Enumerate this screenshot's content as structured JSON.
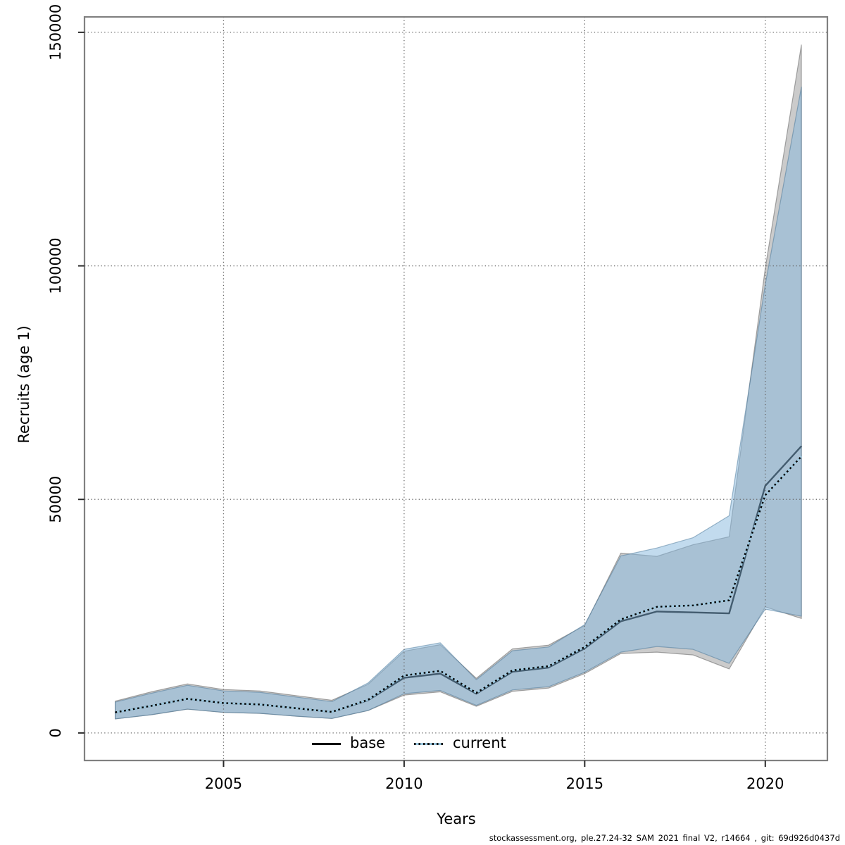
{
  "figure": {
    "background": "#ffffff"
  },
  "footer": {
    "text": "stockassessment.org, ple.27.24-32 SAM 2021 final V2, r14664 , git: 69d926d0437d"
  },
  "legend": {
    "position": "bottom-center-inside",
    "items": [
      {
        "label": "base",
        "line_style": "solid",
        "line_color": "#000000"
      },
      {
        "label": "current",
        "line_style": "dotted",
        "line_color": "#9ecae1"
      }
    ]
  },
  "chart_data": {
    "type": "line",
    "title": "",
    "xlabel": "Years",
    "ylabel": "Recruits (age 1)",
    "grid": "dotted",
    "legend_position": "bottom-center-inside",
    "xlim": [
      2001.15,
      2021.72
    ],
    "ylim": [
      -5900,
      153300
    ],
    "xticks": [
      2005,
      2010,
      2015,
      2020
    ],
    "xtick_labels": [
      "2005",
      "2010",
      "2015",
      "2020"
    ],
    "yticks": [
      0,
      50000,
      100000,
      150000
    ],
    "ytick_labels": [
      "0",
      "50000",
      "100000",
      "150000"
    ],
    "x": [
      2002,
      2003,
      2004,
      2005,
      2006,
      2007,
      2008,
      2009,
      2010,
      2011,
      2012,
      2013,
      2014,
      2015,
      2016,
      2017,
      2018,
      2019,
      2020,
      2021
    ],
    "series": [
      {
        "name": "base",
        "style": "solid",
        "median": [
          4400,
          5800,
          7300,
          6400,
          6100,
          5300,
          4500,
          7000,
          11800,
          12700,
          8400,
          13100,
          14000,
          18100,
          23900,
          26000,
          25800,
          25600,
          52900,
          61400
        ],
        "lo": [
          3000,
          3900,
          5100,
          4400,
          4200,
          3600,
          3100,
          4800,
          8100,
          8800,
          5700,
          8900,
          9600,
          12700,
          17000,
          17300,
          16700,
          13700,
          27000,
          24500
        ],
        "hi": [
          6800,
          8800,
          10500,
          9300,
          9000,
          8000,
          7000,
          10400,
          17500,
          18900,
          11700,
          18000,
          18800,
          23000,
          38500,
          37800,
          40300,
          42000,
          99500,
          147300
        ]
      },
      {
        "name": "current",
        "style": "dotted",
        "median": [
          4400,
          5800,
          7300,
          6400,
          6100,
          5300,
          4500,
          7100,
          12300,
          13300,
          8600,
          13400,
          14300,
          18400,
          24300,
          27000,
          27300,
          28400,
          50900,
          59200
        ],
        "lo": [
          3000,
          3900,
          5100,
          4400,
          4200,
          3600,
          3100,
          4800,
          8400,
          9100,
          5900,
          9200,
          9900,
          13000,
          17300,
          18500,
          17900,
          14900,
          26500,
          25000
        ],
        "hi": [
          6600,
          8500,
          10200,
          9000,
          8700,
          7700,
          6700,
          10700,
          17900,
          19300,
          11400,
          17600,
          18400,
          23200,
          37900,
          39600,
          41800,
          46500,
          96000,
          138300
        ]
      }
    ],
    "colors": {
      "base_band": "rgba(130,130,130,0.42)",
      "base_band_stroke": "rgba(100,100,100,0.55)",
      "base_line": "#000000",
      "current_band": "rgba(134,184,222,0.50)",
      "current_band_stroke": "rgba(70,115,150,0.50)",
      "current_line_underlay": "#9ecae1",
      "current_line_dash": "#000000",
      "grid": "#666666",
      "border": "#808080",
      "tick": "#2a2a2a",
      "text": "#000000"
    }
  }
}
